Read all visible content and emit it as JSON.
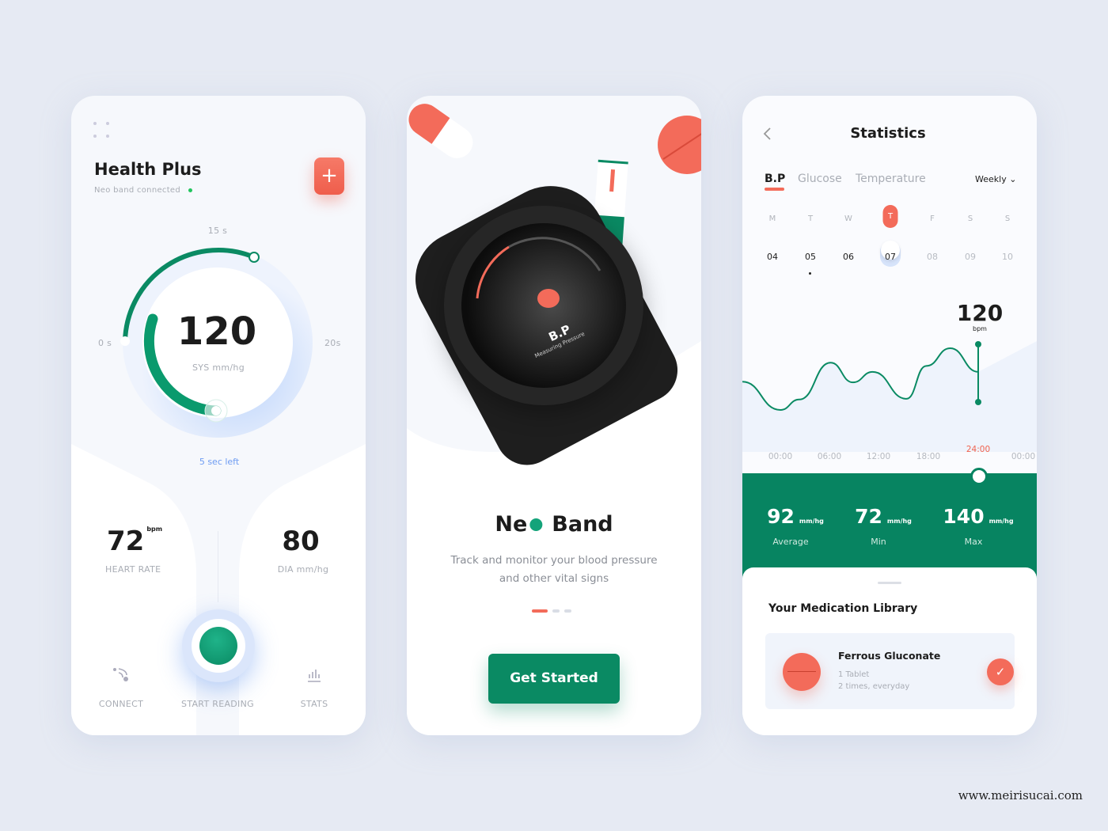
{
  "health": {
    "title": "Health Plus",
    "subtitle": "Neo band connected",
    "add_label": "+",
    "gauge": {
      "label_top": "15 s",
      "label_left": "0 s",
      "label_right": "20s",
      "value": "120",
      "unit": "SYS mm/hg",
      "time_left": "5 sec left",
      "progress_percent": 75
    },
    "heart_rate": {
      "value": "72",
      "unit": "bpm",
      "label": "HEART  RATE"
    },
    "dia": {
      "value": "80",
      "label": "DIA mm/hg"
    },
    "nav": {
      "connect": "CONNECT",
      "start": "START READING",
      "stats": "STATS"
    },
    "colors": {
      "accent": "#f0624f",
      "green": "#0a8a63",
      "status": "#22c55e",
      "blue": "#6e9cf2"
    }
  },
  "onboard": {
    "title_start": "Ne",
    "title_end": "Band",
    "description_1": "Track and monitor your blood pressure",
    "description_2": "and other vital signs",
    "watch_title": "B.P",
    "watch_subtitle": "Measuring Pressure",
    "page_index": 1,
    "page_count": 3,
    "cta": "Get Started"
  },
  "stats": {
    "title": "Statistics",
    "tabs": [
      {
        "label": "B.P",
        "active": true
      },
      {
        "label": "Glucose"
      },
      {
        "label": "Temperature"
      }
    ],
    "period": "Weekly",
    "days": [
      {
        "d": "M",
        "n": "04"
      },
      {
        "d": "T",
        "n": "05",
        "dot": true
      },
      {
        "d": "W",
        "n": "06"
      },
      {
        "d": "T",
        "n": "07",
        "active": true
      },
      {
        "d": "F",
        "n": "08",
        "muted": true
      },
      {
        "d": "S",
        "n": "09",
        "muted": true
      },
      {
        "d": "S",
        "n": "10",
        "muted": true
      }
    ],
    "current_value": "120",
    "current_unit": "bpm",
    "times": [
      "00:00",
      "06:00",
      "12:00",
      "18:00",
      "24:00",
      "00:00"
    ],
    "summary": [
      {
        "value": "92",
        "unit": "mm/hg",
        "label": "Average"
      },
      {
        "value": "72",
        "unit": "mm/hg",
        "label": "Min"
      },
      {
        "value": "140",
        "unit": "mm/hg",
        "label": "Max"
      }
    ],
    "medication": {
      "heading": "Your Medication Library",
      "name": "Ferrous Gluconate",
      "dose": "1 Tablet",
      "frequency": "2 times, everyday",
      "taken": true
    }
  },
  "chart_data": {
    "type": "line",
    "x_hours": [
      -4.6,
      0,
      2.3,
      6.1,
      8.8,
      11.2,
      15.3,
      17.7,
      20.6,
      24
    ],
    "y_relative": [
      43,
      0,
      16,
      72,
      42,
      58,
      17,
      67,
      94,
      58
    ],
    "selected_x": "24:00",
    "selected_value": "120",
    "grid": false
  },
  "watermark": "www.meirisucai.com"
}
